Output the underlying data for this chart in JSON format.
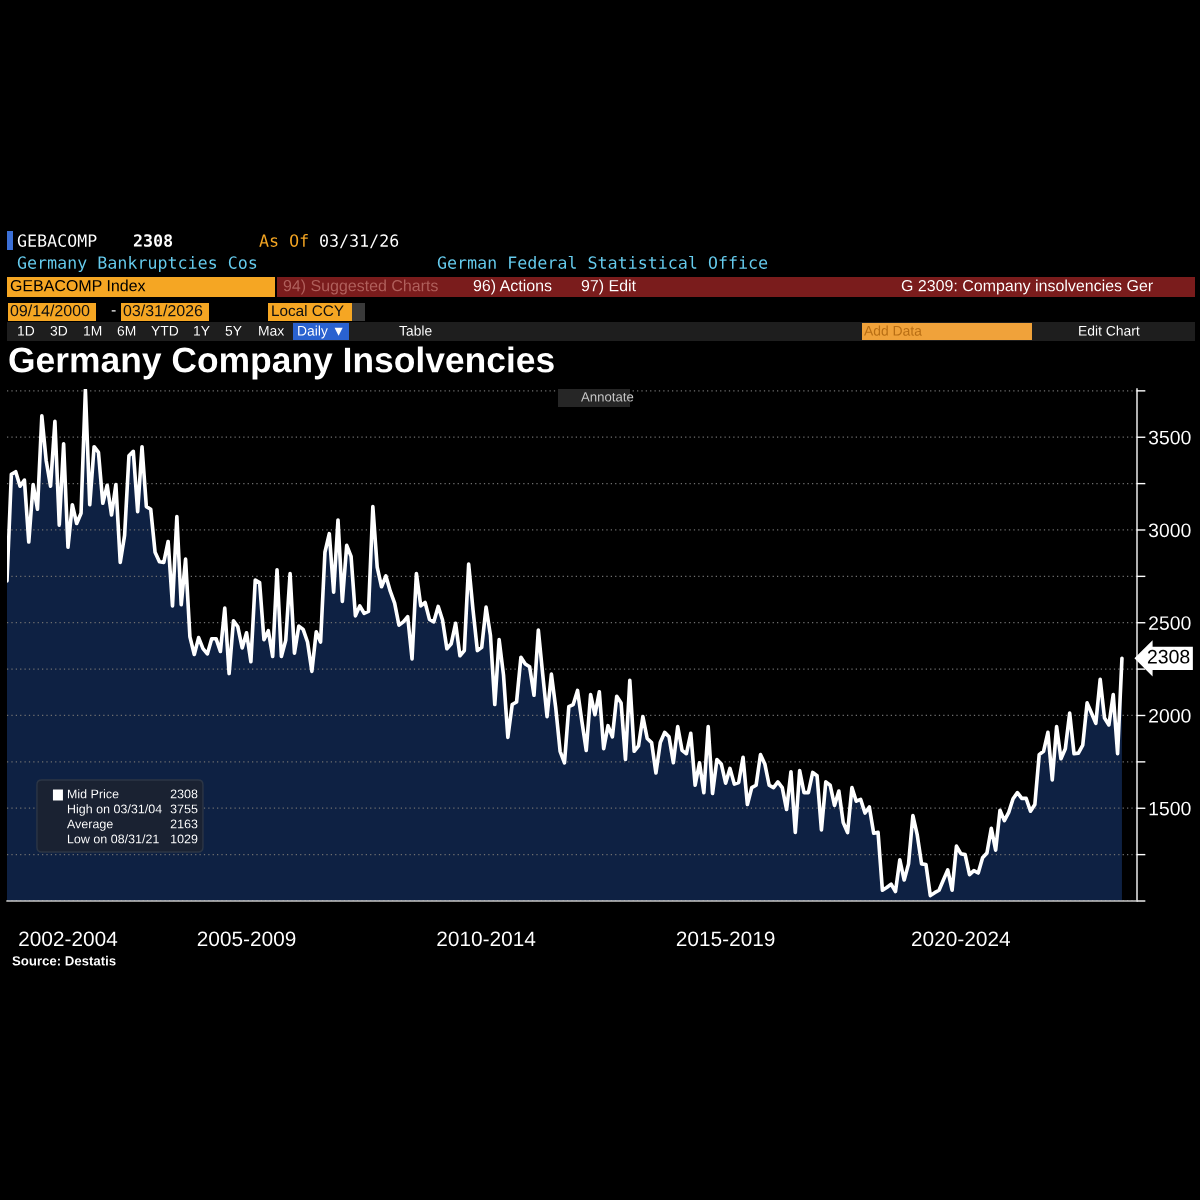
{
  "chart_data": {
    "type": "area",
    "title": "Germany Company Insolvencies",
    "categories": [
      null,
      null,
      null,
      null,
      null,
      null,
      null,
      null,
      null,
      null,
      null,
      null,
      null,
      null,
      "2002-2004",
      null,
      null,
      null,
      null,
      null,
      null,
      null,
      null,
      null,
      null,
      null,
      null,
      null,
      null,
      null,
      null,
      null,
      null,
      null,
      null,
      null,
      null,
      null,
      null,
      null,
      null,
      null,
      null,
      null,
      null,
      null,
      null,
      null,
      null,
      null,
      null,
      null,
      null,
      null,
      null,
      "2005-2009",
      null,
      null,
      null,
      null,
      null,
      null,
      null,
      null,
      null,
      null,
      null,
      null,
      null,
      null,
      null,
      null,
      null,
      null,
      null,
      null,
      null,
      null,
      null,
      null,
      null,
      null,
      null,
      null,
      null,
      null,
      null,
      null,
      null,
      null,
      null,
      null,
      null,
      null,
      null,
      null,
      null,
      null,
      null,
      null,
      null,
      null,
      null,
      null,
      null,
      null,
      null,
      null,
      null,
      null,
      "2010-2014",
      null,
      null,
      null,
      null,
      null,
      null,
      null,
      null,
      null,
      null,
      null,
      null,
      null,
      null,
      null,
      null,
      null,
      null,
      null,
      null,
      null,
      null,
      null,
      null,
      null,
      null,
      null,
      null,
      null,
      null,
      null,
      null,
      null,
      null,
      null,
      null,
      null,
      null,
      null,
      null,
      null,
      null,
      null,
      null,
      null,
      null,
      null,
      null,
      null,
      null,
      null,
      null,
      null,
      null,
      "2015-2019",
      null,
      null,
      null,
      null,
      null,
      null,
      null,
      null,
      null,
      null,
      null,
      null,
      null,
      null,
      null,
      null,
      null,
      null,
      null,
      null,
      null,
      null,
      null,
      null,
      null,
      null,
      null,
      null,
      null,
      null,
      null,
      null,
      null,
      null,
      null,
      null,
      null,
      null,
      null,
      null,
      null,
      null,
      null,
      null,
      null,
      null,
      null,
      null,
      null,
      null,
      null,
      null,
      null,
      "2020-2024",
      null,
      null,
      null,
      null,
      null,
      null,
      null,
      null,
      null,
      null,
      null,
      null,
      null,
      null,
      null,
      null,
      null,
      null,
      null,
      null,
      null,
      null,
      null,
      null,
      null,
      null,
      null,
      null,
      null,
      null,
      null,
      null,
      null,
      null,
      null,
      null,
      null
    ],
    "series": [
      {
        "name": "Mid Price",
        "color": "#ffffff",
        "values": [
          2725,
          3300,
          3314,
          3236,
          3269,
          2935,
          3245,
          3112,
          3615,
          3373,
          3236,
          3586,
          3026,
          3464,
          2907,
          3136,
          3035,
          3090,
          3755,
          3136,
          3449,
          3418,
          3144,
          3241,
          3081,
          3245,
          2825,
          2971,
          3400,
          3424,
          3099,
          3449,
          3126,
          3112,
          2880,
          2829,
          2825,
          2938,
          2591,
          3072,
          2597,
          2843,
          2424,
          2329,
          2420,
          2360,
          2332,
          2414,
          2414,
          2345,
          2579,
          2226,
          2511,
          2478,
          2364,
          2446,
          2290,
          2730,
          2716,
          2409,
          2457,
          2318,
          2785,
          2318,
          2405,
          2765,
          2336,
          2482,
          2464,
          2396,
          2238,
          2451,
          2396,
          2880,
          2980,
          2665,
          3054,
          2615,
          2917,
          2858,
          2537,
          2591,
          2551,
          2561,
          3126,
          2800,
          2694,
          2752,
          2670,
          2606,
          2487,
          2505,
          2533,
          2305,
          2765,
          2591,
          2609,
          2518,
          2505,
          2588,
          2515,
          2360,
          2387,
          2497,
          2322,
          2350,
          2816,
          2569,
          2350,
          2368,
          2584,
          2433,
          2059,
          2409,
          2219,
          1882,
          2059,
          2073,
          2314,
          2278,
          2263,
          2109,
          2460,
          2223,
          1994,
          2223,
          2040,
          1807,
          1745,
          2048,
          2059,
          2135,
          1967,
          1812,
          2113,
          2004,
          2128,
          1821,
          1945,
          1885,
          2104,
          2068,
          1763,
          2190,
          1807,
          1836,
          1994,
          1876,
          1854,
          1690,
          1854,
          1909,
          1885,
          1745,
          1940,
          1812,
          1794,
          1904,
          1624,
          1745,
          1584,
          1940,
          1580,
          1763,
          1739,
          1635,
          1715,
          1630,
          1639,
          1775,
          1520,
          1611,
          1624,
          1789,
          1739,
          1624,
          1611,
          1642,
          1611,
          1493,
          1697,
          1370,
          1703,
          1584,
          1584,
          1693,
          1675,
          1383,
          1642,
          1624,
          1515,
          1593,
          1423,
          1369,
          1611,
          1538,
          1548,
          1474,
          1507,
          1365,
          1370,
          1058,
          1073,
          1091,
          1051,
          1222,
          1113,
          1200,
          1460,
          1356,
          1200,
          1197,
          1029,
          1045,
          1058,
          1113,
          1168,
          1058,
          1296,
          1255,
          1250,
          1142,
          1164,
          1151,
          1233,
          1259,
          1392,
          1274,
          1489,
          1433,
          1478,
          1551,
          1584,
          1553,
          1553,
          1484,
          1520,
          1789,
          1807,
          1909,
          1653,
          1940,
          1767,
          1821,
          2013,
          1794,
          1797,
          1840,
          2068,
          2013,
          1958,
          2195,
          1986,
          1949,
          2113,
          1794,
          2308
        ],
        "value_labels": [
          null,
          null,
          null,
          null,
          null,
          null,
          null,
          null,
          null,
          null,
          null,
          null,
          null,
          null,
          null,
          null,
          null,
          null,
          null,
          null,
          null,
          null,
          null,
          null,
          null,
          null,
          null,
          null,
          null,
          null,
          null,
          null,
          null,
          null,
          null,
          null,
          null,
          null,
          null,
          null,
          null,
          null,
          null,
          null,
          null,
          null,
          null,
          null,
          null,
          null,
          null,
          null,
          null,
          null,
          null,
          null,
          null,
          null,
          null,
          null,
          null,
          null,
          null,
          null,
          null,
          null,
          null,
          null,
          null,
          null,
          null,
          null,
          null,
          null,
          null,
          null,
          null,
          null,
          null,
          null,
          null,
          null,
          null,
          null,
          null,
          null,
          null,
          null,
          null,
          null,
          null,
          null,
          null,
          null,
          null,
          null,
          null,
          null,
          null,
          null,
          null,
          null,
          null,
          null,
          null,
          null,
          null,
          null,
          null,
          null,
          null,
          null,
          null,
          null,
          null,
          null,
          null,
          null,
          null,
          null,
          null,
          null,
          null,
          null,
          null,
          null,
          null,
          null,
          null,
          null,
          null,
          null,
          null,
          null,
          null,
          null,
          null,
          null,
          null,
          null,
          null,
          null,
          null,
          null,
          null,
          null,
          null,
          null,
          null,
          null,
          null,
          null,
          null,
          null,
          null,
          null,
          null,
          null,
          null,
          null,
          null,
          null,
          null,
          null,
          null,
          null,
          null,
          null,
          null,
          null,
          null,
          null,
          null,
          null,
          null,
          null,
          null,
          null,
          null,
          null,
          null,
          null,
          null,
          null,
          null,
          null,
          null,
          null,
          null,
          null,
          null,
          null,
          null,
          null,
          null,
          null,
          null,
          null,
          null,
          null,
          null,
          null,
          null,
          null,
          null,
          null,
          null,
          null,
          null,
          null,
          null,
          null,
          null,
          null,
          null,
          null,
          null,
          null,
          null,
          null,
          null,
          null,
          null,
          null,
          null,
          null,
          null,
          null,
          null,
          null,
          null,
          null,
          null,
          null,
          null,
          null,
          null,
          null,
          null,
          null,
          null,
          null,
          null,
          null,
          null,
          null,
          null,
          null,
          null,
          null,
          null,
          null,
          null,
          null,
          null,
          null,
          "2308"
        ]
      }
    ],
    "ylim": [
      1000,
      3760
    ],
    "yticks": [
      {
        "value": 1000,
        "label": null
      },
      {
        "value": 1250,
        "label": null
      },
      1500,
      {
        "value": 1750,
        "label": null
      },
      2000,
      {
        "value": 2250,
        "label": null
      },
      2500,
      {
        "value": 2750,
        "label": null
      },
      3000,
      {
        "value": 3250,
        "label": null
      },
      3500,
      {
        "value": 3750,
        "label": null
      }
    ],
    "grid": "y",
    "legend": "bottom left",
    "annotations": [
      "GEBACOMP",
      "2308",
      "As Of",
      "03/31/26",
      "Germany Bankruptcies Cos",
      "German Federal Statistical Office",
      "GEBACOMP Index",
      "94) Suggested Charts",
      "96) Actions",
      "97) Edit",
      "G 2309: Company insolvencies Ger",
      "09/14/2000",
      "-",
      "03/31/2026",
      "Local CCY",
      "1D",
      "3D",
      "1M",
      "6M",
      "YTD",
      "1Y",
      "5Y",
      "Max",
      "Daily ▼",
      "Table",
      "Add Data",
      "Edit Chart",
      "Annotate",
      "2308",
      "High on 03/31/04",
      "3755",
      "Average",
      "2163",
      "Low on 08/31/21",
      "1029",
      "Source: Destatis"
    ]
  }
}
